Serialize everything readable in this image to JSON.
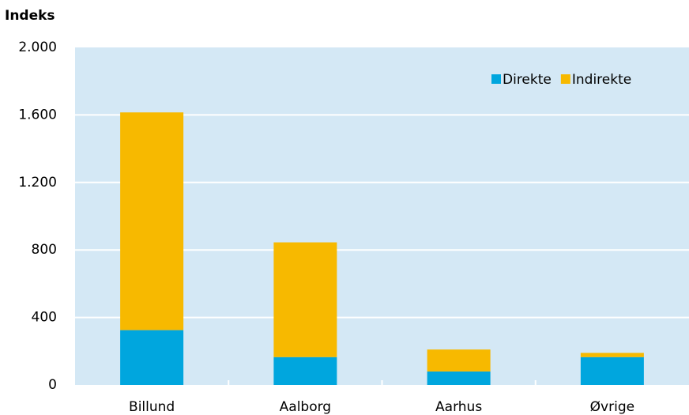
{
  "chart_data": {
    "type": "stacked_bar",
    "y_label": "Indeks",
    "categories": [
      "Billund",
      "Aalborg",
      "Aarhus",
      "Øvrige"
    ],
    "series": [
      {
        "name": "Direkte",
        "color": "#00a6de",
        "values": [
          325,
          165,
          80,
          165
        ]
      },
      {
        "name": "Indirekte",
        "color": "#f7b900",
        "values": [
          1290,
          680,
          130,
          25
        ]
      }
    ],
    "ylim": [
      0,
      2000
    ],
    "yticks": [
      0,
      400,
      800,
      {
        "value": 1200,
        "label": "1.200"
      },
      {
        "value": 1600,
        "label": "1.600"
      },
      {
        "value": 2000,
        "label": "2.000"
      }
    ],
    "grid": true,
    "legend": "top-right"
  }
}
